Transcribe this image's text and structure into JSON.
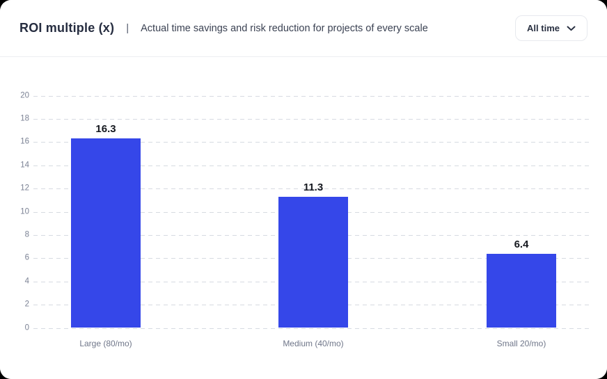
{
  "header": {
    "title": "ROI multiple (x)",
    "separator": "|",
    "subtitle": "Actual time savings and risk reduction for projects of every scale",
    "filter_dropdown": {
      "label": "All time",
      "icon": "chevron-down-icon"
    }
  },
  "chart_data": {
    "type": "bar",
    "title": "ROI multiple (x)",
    "categories": [
      "Large (80/mo)",
      "Medium (40/mo)",
      "Small 20/mo)"
    ],
    "values": [
      16.3,
      11.3,
      6.4
    ],
    "value_labels": [
      "16.3",
      "11.3",
      "6.4"
    ],
    "xlabel": "",
    "ylabel": "",
    "ylim": [
      0,
      20
    ],
    "yticks": [
      20,
      18,
      16,
      14,
      12,
      10,
      8,
      6,
      4,
      2,
      0
    ],
    "grid": "horizontal-dashed",
    "legend": "none",
    "bar_color": "#3547e9"
  },
  "colors": {
    "bar": "#3547e9",
    "gridline": "#d6dae1",
    "axis_label": "#7b8294",
    "category_label": "#6f7689",
    "value_label": "#15181f",
    "title": "#262d40",
    "subtitle": "#3a4152",
    "header_border": "#eceef1",
    "card_background": "#ffffff"
  }
}
